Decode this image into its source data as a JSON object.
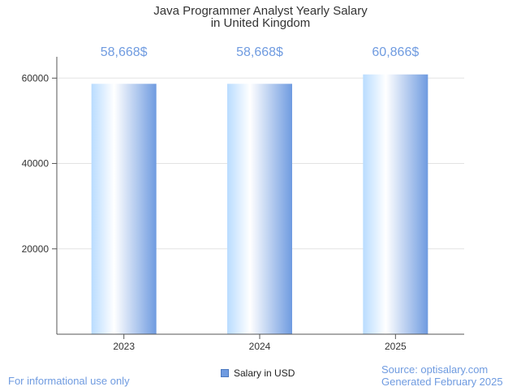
{
  "chart_data": {
    "type": "bar",
    "title_lines": [
      "Java Programmer Analyst Yearly Salary",
      "in United Kingdom"
    ],
    "categories": [
      "2023",
      "2024",
      "2025"
    ],
    "series": [
      {
        "name": "Salary in USD",
        "values": [
          58668,
          58668,
          60866
        ]
      }
    ],
    "data_labels": [
      "58,668$",
      "58,668$",
      "60,866$"
    ],
    "y_ticks": [
      20000,
      40000,
      60000
    ],
    "ylim": [
      0,
      65000
    ],
    "grid": true,
    "legend_position": "bottom-center"
  },
  "footer": {
    "left": "For informational use only",
    "source": "Source: optisalary.com",
    "generated": "Generated February 2025"
  },
  "colors": {
    "bar_light": "#ffffff",
    "bar_mid": "#b9dcff",
    "bar_dark": "#6f9be0",
    "label": "#6f9be0"
  }
}
